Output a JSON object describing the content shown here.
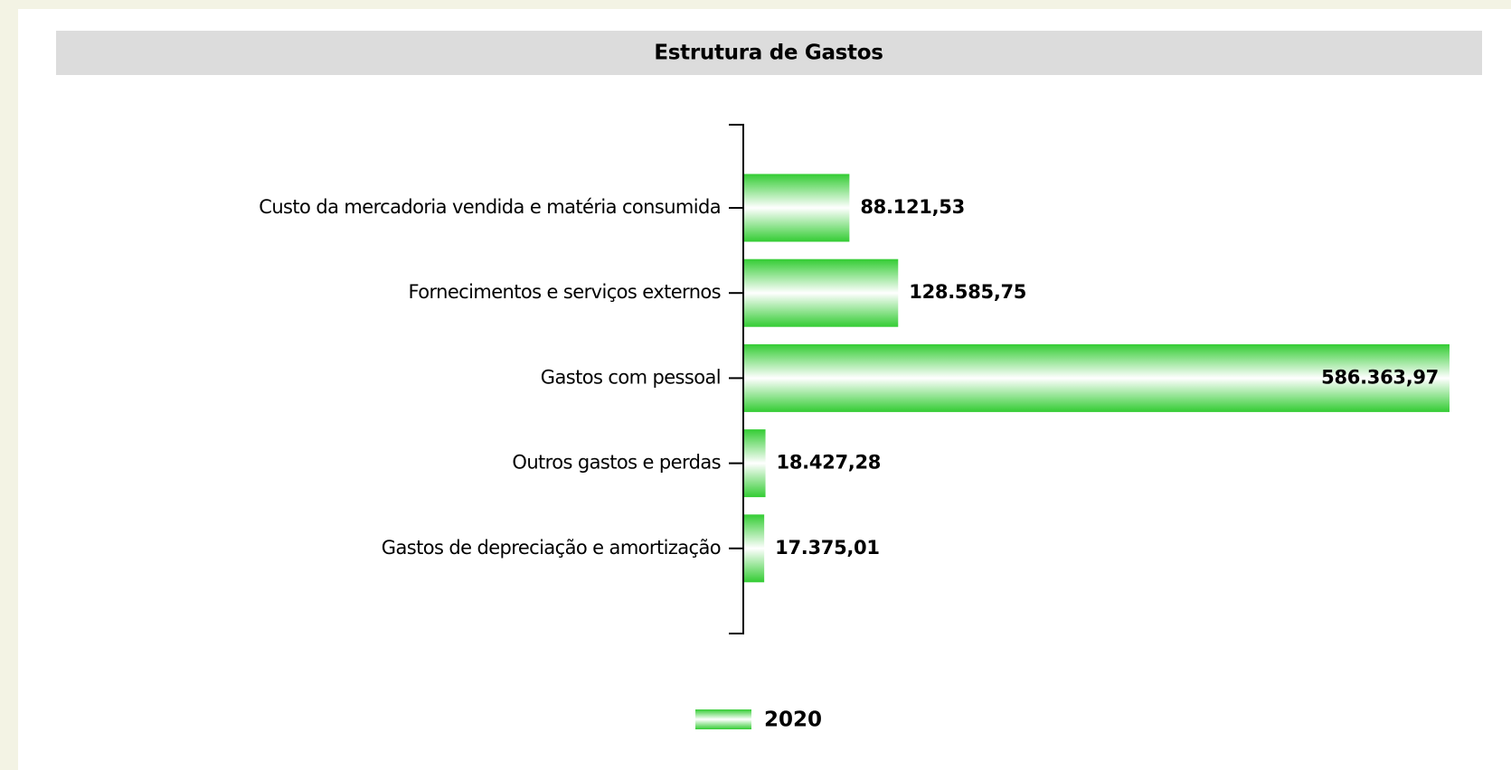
{
  "chart_data": {
    "type": "bar",
    "orientation": "horizontal",
    "title": "Estrutura de Gastos",
    "categories": [
      "Custo da mercadoria vendida e matéria consumida",
      "Fornecimentos e serviços externos",
      "Gastos com pessoal",
      "Outros gastos e perdas",
      "Gastos de depreciação e amortização"
    ],
    "series": [
      {
        "name": "2020",
        "color": "#33cc33",
        "values": [
          88121.53,
          128585.75,
          586363.97,
          18427.28,
          17375.01
        ],
        "value_labels": [
          "88.121,53",
          "128.585,75",
          "586.363,97",
          "18.427,28",
          "17.375,01"
        ]
      }
    ],
    "legend": "bottom"
  }
}
